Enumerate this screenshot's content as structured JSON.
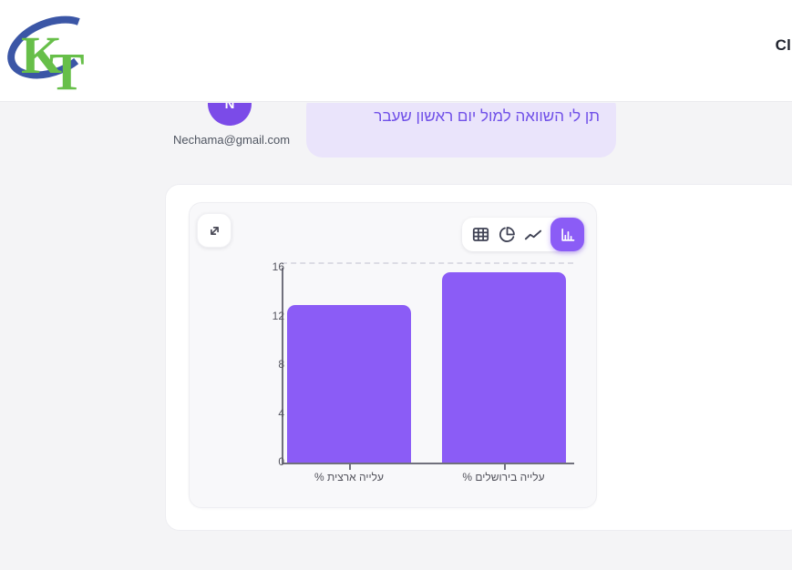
{
  "header": {
    "logo_text": "KT",
    "right_text": "Cl"
  },
  "chat": {
    "avatar_initial": "N",
    "user_email": "Nechama@gmail.com",
    "message_text": "תן לי השוואה למול יום ראשון שעבר"
  },
  "chart_toolbar": {
    "views": [
      "table",
      "pie",
      "line",
      "bar"
    ],
    "selected": "bar"
  },
  "chart_data": {
    "type": "bar",
    "categories": [
      "עלייה ארצית %",
      "עלייה בירושלים %"
    ],
    "values": [
      12.9,
      15.6
    ],
    "title": "",
    "xlabel": "",
    "ylabel": "",
    "ylim": [
      0,
      16
    ],
    "yticks": [
      0,
      4,
      8,
      12,
      16
    ],
    "bar_color": "#8b5cf6",
    "legend_position": "none",
    "grid": "single dashed line at top of plot"
  },
  "colors": {
    "accent": "#8b5cf6",
    "avatar_bg": "#7b4be8",
    "bubble_bg": "#eae4fb",
    "bubble_text": "#7050e8",
    "logo_green": "#67bf49",
    "logo_blue": "#3b56a6",
    "page_bg": "#f4f4f6"
  }
}
